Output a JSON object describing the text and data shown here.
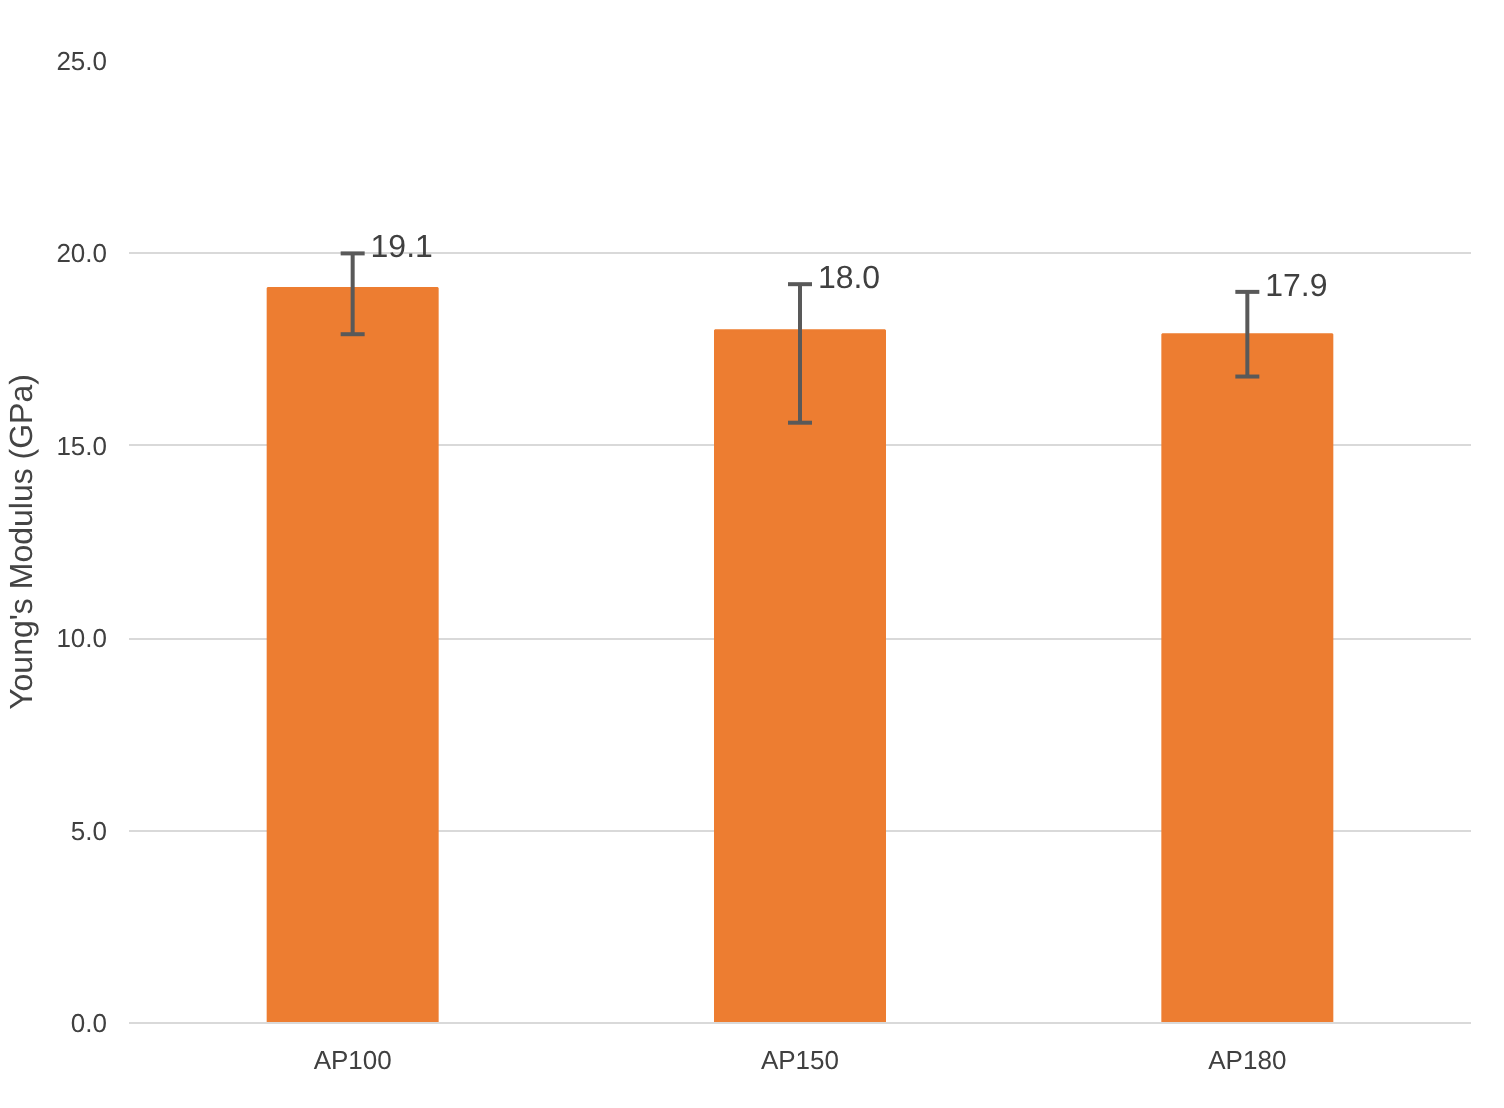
{
  "chart_data": {
    "type": "bar",
    "ylabel": "Young's Modulus (GPa)",
    "categories": [
      "AP100",
      "AP150",
      "AP180"
    ],
    "values": [
      19.1,
      18.0,
      17.9
    ],
    "errors": [
      [
        17.9,
        20.0
      ],
      [
        15.6,
        19.2
      ],
      [
        16.8,
        19.0
      ]
    ],
    "color": "#ed7d31",
    "value_labels": [
      "19.1",
      "18.0",
      "17.9"
    ],
    "ylim": [
      0,
      25
    ],
    "yticks": [
      {
        "value": 0,
        "label": "0.0"
      },
      {
        "value": 5,
        "label": "5.0"
      },
      {
        "value": 10,
        "label": "10.0"
      },
      {
        "value": 15,
        "label": "15.0"
      },
      {
        "value": 20,
        "label": "20.0"
      },
      {
        "value": 25,
        "label": "25.0"
      }
    ],
    "grid": "y"
  }
}
